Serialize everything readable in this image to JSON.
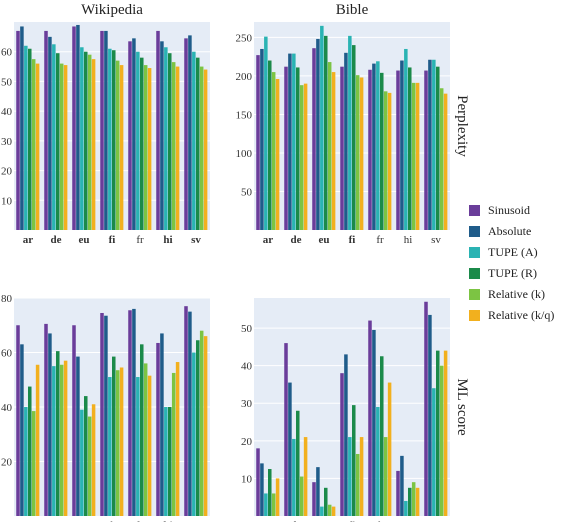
{
  "colors": {
    "panel_bg": "#e5ecf6",
    "grid": "#ffffff",
    "series": [
      "#6a3d9a",
      "#1f5c8a",
      "#2ab3b3",
      "#1b8a4a",
      "#7cc443",
      "#f2b01e"
    ]
  },
  "legend_position": "right",
  "chart_data": [
    {
      "type": "bar",
      "title": "Wikipedia",
      "categories": [
        "ar",
        "de",
        "eu",
        "fi",
        "fr",
        "hi",
        "sv"
      ],
      "bold_categories": [
        "ar",
        "de",
        "eu",
        "fi",
        "hi",
        "sv"
      ],
      "ylim": [
        0,
        70
      ],
      "yticks": [
        10,
        20,
        30,
        40,
        50,
        60
      ],
      "series": [
        {
          "name": "Sinusoid",
          "values": [
            67,
            67,
            68.5,
            67,
            63.5,
            67,
            64.5
          ]
        },
        {
          "name": "Absolute",
          "values": [
            68.5,
            65,
            69,
            67,
            64.5,
            63.5,
            65.5
          ]
        },
        {
          "name": "TUPE (A)",
          "values": [
            62,
            62.5,
            61.5,
            61,
            60,
            61.5,
            60
          ]
        },
        {
          "name": "TUPE (R)",
          "values": [
            61,
            59.5,
            60,
            60.5,
            58,
            59.5,
            58
          ]
        },
        {
          "name": "Relative (k)",
          "values": [
            57.5,
            56,
            59,
            57,
            55.5,
            56.5,
            55
          ]
        },
        {
          "name": "Relative (k/q)",
          "values": [
            56,
            55.5,
            57.5,
            55.5,
            54.5,
            55,
            54
          ]
        }
      ]
    },
    {
      "type": "bar",
      "title": "Bible",
      "ylabel": "Perplexity",
      "categories": [
        "ar",
        "de",
        "eu",
        "fi",
        "fr",
        "hi",
        "sv"
      ],
      "bold_categories": [
        "ar",
        "de",
        "eu",
        "fi"
      ],
      "ylim": [
        0,
        270
      ],
      "yticks": [
        50,
        100,
        150,
        200,
        250
      ],
      "series": [
        {
          "name": "Sinusoid",
          "values": [
            227,
            212,
            236,
            212,
            208,
            207,
            207
          ]
        },
        {
          "name": "Absolute",
          "values": [
            235,
            229,
            248,
            230,
            216,
            220,
            221
          ]
        },
        {
          "name": "TUPE (A)",
          "values": [
            251,
            229,
            265,
            252,
            219,
            235,
            221
          ]
        },
        {
          "name": "TUPE (R)",
          "values": [
            220,
            211,
            252,
            240,
            204,
            211,
            212
          ]
        },
        {
          "name": "Relative (k)",
          "values": [
            205,
            188,
            218,
            201,
            180,
            191,
            184
          ]
        },
        {
          "name": "Relative (k/q)",
          "values": [
            196,
            190,
            205,
            198,
            178,
            191,
            177
          ]
        }
      ]
    },
    {
      "type": "bar",
      "categories": [
        "ar",
        "de",
        "eu",
        "fi",
        "fr",
        "hi",
        "sv"
      ],
      "bold_categories": [
        "ar",
        "eu",
        "fr",
        "hi",
        "sv"
      ],
      "ylim": [
        0,
        80
      ],
      "yticks": [
        20,
        40,
        60,
        80
      ],
      "series": [
        {
          "name": "Sinusoid",
          "values": [
            70,
            70.5,
            70,
            74.5,
            75.5,
            63.5,
            77
          ]
        },
        {
          "name": "Absolute",
          "values": [
            63,
            67,
            58.5,
            73.5,
            76,
            67,
            75
          ]
        },
        {
          "name": "TUPE (A)",
          "values": [
            40,
            55,
            39,
            51,
            51,
            40,
            60
          ]
        },
        {
          "name": "TUPE (R)",
          "values": [
            47.5,
            60.5,
            44,
            58.5,
            63,
            40,
            64.5
          ]
        },
        {
          "name": "Relative (k)",
          "values": [
            38.5,
            55.5,
            36.5,
            53.5,
            56,
            52.5,
            68
          ]
        },
        {
          "name": "Relative (k/q)",
          "values": [
            55.5,
            57,
            41,
            54.5,
            51.5,
            56.5,
            66
          ]
        }
      ]
    },
    {
      "type": "bar",
      "ylabel": "ML score",
      "categories": [
        "ar",
        "de",
        "eu",
        "fi",
        "fr",
        "hi",
        "sv"
      ],
      "bold_categories": [
        "de",
        "fi",
        "sv"
      ],
      "ylim": [
        0,
        58
      ],
      "yticks": [
        10,
        20,
        30,
        40,
        50
      ],
      "series": [
        {
          "name": "Sinusoid",
          "values": [
            18,
            46,
            9,
            38,
            52,
            12,
            57
          ]
        },
        {
          "name": "Absolute",
          "values": [
            14,
            35.5,
            13,
            43,
            49.5,
            16,
            53.5
          ]
        },
        {
          "name": "TUPE (A)",
          "values": [
            6,
            20.5,
            2.5,
            21,
            29,
            4,
            34
          ]
        },
        {
          "name": "TUPE (R)",
          "values": [
            12.5,
            28,
            7.5,
            29.5,
            42.5,
            7.5,
            44
          ]
        },
        {
          "name": "Relative (k)",
          "values": [
            6,
            10.5,
            3,
            16.5,
            21,
            9,
            40
          ]
        },
        {
          "name": "Relative (k/q)",
          "values": [
            10,
            21,
            2.5,
            21,
            35.5,
            7.5,
            44
          ]
        }
      ]
    }
  ]
}
